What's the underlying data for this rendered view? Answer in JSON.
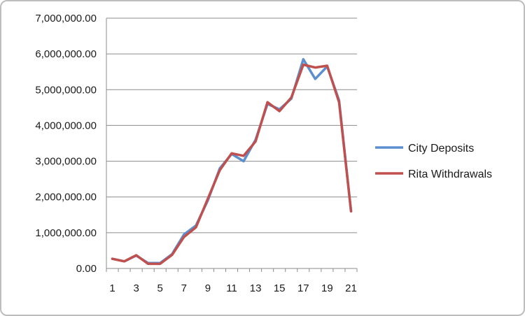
{
  "chart_data": {
    "type": "line",
    "title": "",
    "xlabel": "",
    "ylabel": "",
    "x": [
      1,
      2,
      3,
      4,
      5,
      6,
      7,
      8,
      9,
      10,
      11,
      12,
      13,
      14,
      15,
      16,
      17,
      18,
      19,
      20,
      21
    ],
    "x_tick_labels": [
      "1",
      "3",
      "5",
      "7",
      "9",
      "11",
      "13",
      "15",
      "17",
      "19",
      "21"
    ],
    "y_tick_labels": [
      "0.00",
      "1,000,000.00",
      "2,000,000.00",
      "3,000,000.00",
      "4,000,000.00",
      "5,000,000.00",
      "6,000,000.00",
      "7,000,000.00"
    ],
    "ylim": [
      0,
      7000000
    ],
    "y_ticks": [
      0,
      1000000,
      2000000,
      3000000,
      4000000,
      5000000,
      6000000,
      7000000
    ],
    "grid": "horizontal",
    "legend_position": "right",
    "series": [
      {
        "name": "City Deposits",
        "color": "#5b8fd0",
        "values": [
          270000,
          200000,
          360000,
          150000,
          150000,
          400000,
          950000,
          1200000,
          1900000,
          2800000,
          3200000,
          3000000,
          3600000,
          4600000,
          4450000,
          4750000,
          5850000,
          5300000,
          5650000,
          4700000,
          1600000
        ]
      },
      {
        "name": "Rita Withdrawals",
        "color": "#c0504d",
        "values": [
          270000,
          200000,
          370000,
          130000,
          130000,
          380000,
          880000,
          1150000,
          1950000,
          2750000,
          3220000,
          3150000,
          3550000,
          4650000,
          4400000,
          4780000,
          5700000,
          5620000,
          5670000,
          4650000,
          1600000
        ]
      }
    ]
  }
}
